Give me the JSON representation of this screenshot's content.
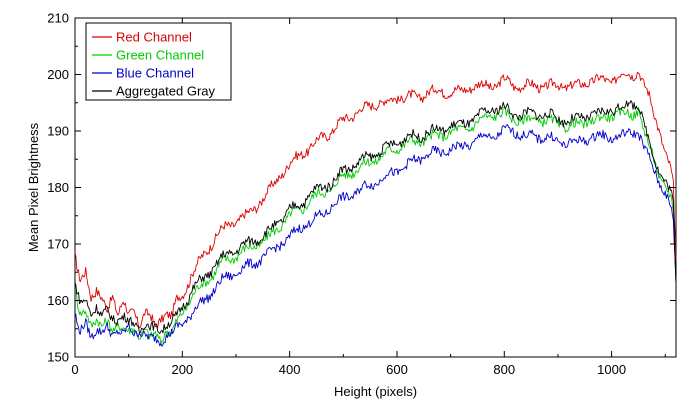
{
  "chart_data": {
    "type": "line",
    "title": "",
    "xlabel": "Height (pixels)",
    "ylabel": "Mean Pixel Brightness",
    "xlim": [
      0,
      1120
    ],
    "ylim": [
      150,
      210
    ],
    "xticks": [
      0,
      200,
      400,
      600,
      800,
      1000
    ],
    "yticks": [
      150,
      160,
      170,
      180,
      190,
      200,
      210
    ],
    "grid": false,
    "legend_position": "top-left",
    "series": [
      {
        "name": "Red Channel",
        "color": "#dd0000",
        "points": [
          [
            0,
            168
          ],
          [
            5,
            165
          ],
          [
            10,
            163
          ],
          [
            20,
            165
          ],
          [
            30,
            161
          ],
          [
            40,
            162
          ],
          [
            50,
            160
          ],
          [
            60,
            158
          ],
          [
            70,
            161
          ],
          [
            80,
            158
          ],
          [
            90,
            160
          ],
          [
            100,
            157
          ],
          [
            110,
            158
          ],
          [
            120,
            156
          ],
          [
            130,
            158
          ],
          [
            140,
            157
          ],
          [
            150,
            155
          ],
          [
            160,
            157
          ],
          [
            170,
            158
          ],
          [
            180,
            157
          ],
          [
            190,
            160
          ],
          [
            200,
            161
          ],
          [
            220,
            165
          ],
          [
            240,
            168
          ],
          [
            260,
            171
          ],
          [
            280,
            173
          ],
          [
            300,
            174
          ],
          [
            320,
            175
          ],
          [
            340,
            177
          ],
          [
            360,
            179
          ],
          [
            380,
            182
          ],
          [
            400,
            184
          ],
          [
            420,
            186
          ],
          [
            440,
            187
          ],
          [
            460,
            189
          ],
          [
            480,
            190
          ],
          [
            500,
            192
          ],
          [
            520,
            193
          ],
          [
            540,
            194
          ],
          [
            560,
            195
          ],
          [
            580,
            195
          ],
          [
            600,
            196
          ],
          [
            620,
            196
          ],
          [
            640,
            196
          ],
          [
            660,
            197
          ],
          [
            680,
            197
          ],
          [
            700,
            197
          ],
          [
            720,
            197
          ],
          [
            740,
            198
          ],
          [
            760,
            198
          ],
          [
            780,
            198
          ],
          [
            800,
            199
          ],
          [
            820,
            198
          ],
          [
            840,
            198
          ],
          [
            860,
            198
          ],
          [
            880,
            198
          ],
          [
            900,
            198
          ],
          [
            920,
            198
          ],
          [
            940,
            198
          ],
          [
            960,
            199
          ],
          [
            980,
            199
          ],
          [
            1000,
            199
          ],
          [
            1020,
            200
          ],
          [
            1040,
            200
          ],
          [
            1050,
            201
          ],
          [
            1060,
            198
          ],
          [
            1070,
            196
          ],
          [
            1080,
            193
          ],
          [
            1090,
            190
          ],
          [
            1100,
            186
          ],
          [
            1110,
            183
          ],
          [
            1115,
            180
          ],
          [
            1120,
            167
          ]
        ]
      },
      {
        "name": "Green Channel",
        "color": "#00cc00",
        "points": [
          [
            0,
            162
          ],
          [
            5,
            159
          ],
          [
            10,
            157
          ],
          [
            20,
            158
          ],
          [
            30,
            156
          ],
          [
            40,
            157
          ],
          [
            50,
            155
          ],
          [
            60,
            156
          ],
          [
            70,
            155
          ],
          [
            80,
            156
          ],
          [
            90,
            155
          ],
          [
            100,
            154
          ],
          [
            110,
            155
          ],
          [
            120,
            154
          ],
          [
            130,
            155
          ],
          [
            140,
            153
          ],
          [
            150,
            154
          ],
          [
            160,
            153
          ],
          [
            170,
            155
          ],
          [
            180,
            154
          ],
          [
            190,
            156
          ],
          [
            200,
            158
          ],
          [
            220,
            161
          ],
          [
            240,
            163
          ],
          [
            260,
            165
          ],
          [
            280,
            167
          ],
          [
            300,
            168
          ],
          [
            320,
            169
          ],
          [
            340,
            170
          ],
          [
            360,
            171
          ],
          [
            380,
            173
          ],
          [
            400,
            175
          ],
          [
            420,
            176
          ],
          [
            440,
            178
          ],
          [
            460,
            179
          ],
          [
            480,
            180
          ],
          [
            500,
            182
          ],
          [
            520,
            183
          ],
          [
            540,
            184
          ],
          [
            560,
            185
          ],
          [
            580,
            186
          ],
          [
            600,
            187
          ],
          [
            620,
            188
          ],
          [
            640,
            188
          ],
          [
            660,
            189
          ],
          [
            680,
            189
          ],
          [
            700,
            190
          ],
          [
            720,
            190
          ],
          [
            740,
            191
          ],
          [
            760,
            192
          ],
          [
            780,
            193
          ],
          [
            800,
            193
          ],
          [
            820,
            192
          ],
          [
            840,
            192
          ],
          [
            860,
            192
          ],
          [
            880,
            192
          ],
          [
            900,
            191
          ],
          [
            920,
            191
          ],
          [
            940,
            191
          ],
          [
            960,
            192
          ],
          [
            980,
            192
          ],
          [
            1000,
            193
          ],
          [
            1020,
            193
          ],
          [
            1040,
            193
          ],
          [
            1050,
            194
          ],
          [
            1060,
            190
          ],
          [
            1070,
            187
          ],
          [
            1080,
            185
          ],
          [
            1090,
            182
          ],
          [
            1100,
            180
          ],
          [
            1110,
            178
          ],
          [
            1115,
            176
          ],
          [
            1120,
            163
          ]
        ]
      },
      {
        "name": "Blue Channel",
        "color": "#0000cc",
        "points": [
          [
            0,
            158
          ],
          [
            5,
            155
          ],
          [
            10,
            154
          ],
          [
            20,
            156
          ],
          [
            30,
            154
          ],
          [
            40,
            155
          ],
          [
            50,
            154
          ],
          [
            60,
            155
          ],
          [
            70,
            154
          ],
          [
            80,
            155
          ],
          [
            90,
            154
          ],
          [
            100,
            155
          ],
          [
            110,
            154
          ],
          [
            120,
            155
          ],
          [
            130,
            154
          ],
          [
            140,
            153
          ],
          [
            150,
            153
          ],
          [
            160,
            153
          ],
          [
            170,
            154
          ],
          [
            180,
            154
          ],
          [
            190,
            155
          ],
          [
            200,
            156
          ],
          [
            220,
            158
          ],
          [
            240,
            160
          ],
          [
            260,
            162
          ],
          [
            280,
            164
          ],
          [
            300,
            165
          ],
          [
            320,
            166
          ],
          [
            340,
            167
          ],
          [
            360,
            168
          ],
          [
            380,
            170
          ],
          [
            400,
            171
          ],
          [
            420,
            173
          ],
          [
            440,
            174
          ],
          [
            460,
            175
          ],
          [
            480,
            177
          ],
          [
            500,
            178
          ],
          [
            520,
            179
          ],
          [
            540,
            180
          ],
          [
            560,
            181
          ],
          [
            580,
            182
          ],
          [
            600,
            183
          ],
          [
            620,
            184
          ],
          [
            640,
            185
          ],
          [
            660,
            186
          ],
          [
            680,
            186
          ],
          [
            700,
            187
          ],
          [
            720,
            187
          ],
          [
            740,
            188
          ],
          [
            760,
            189
          ],
          [
            780,
            189
          ],
          [
            800,
            190
          ],
          [
            820,
            190
          ],
          [
            840,
            189
          ],
          [
            860,
            189
          ],
          [
            880,
            189
          ],
          [
            900,
            188
          ],
          [
            920,
            188
          ],
          [
            940,
            188
          ],
          [
            960,
            189
          ],
          [
            980,
            189
          ],
          [
            1000,
            189
          ],
          [
            1020,
            189
          ],
          [
            1040,
            190
          ],
          [
            1050,
            190
          ],
          [
            1060,
            187
          ],
          [
            1070,
            185
          ],
          [
            1080,
            183
          ],
          [
            1090,
            181
          ],
          [
            1100,
            179
          ],
          [
            1110,
            176
          ],
          [
            1115,
            174
          ],
          [
            1120,
            163
          ]
        ]
      },
      {
        "name": "Aggregated Gray",
        "color": "#000000",
        "points": [
          [
            0,
            163
          ],
          [
            5,
            161
          ],
          [
            10,
            159
          ],
          [
            20,
            160
          ],
          [
            30,
            158
          ],
          [
            40,
            159
          ],
          [
            50,
            157
          ],
          [
            60,
            158
          ],
          [
            70,
            157
          ],
          [
            80,
            157
          ],
          [
            90,
            157
          ],
          [
            100,
            156
          ],
          [
            110,
            156
          ],
          [
            120,
            155
          ],
          [
            130,
            156
          ],
          [
            140,
            155
          ],
          [
            150,
            155
          ],
          [
            160,
            155
          ],
          [
            170,
            156
          ],
          [
            180,
            156
          ],
          [
            190,
            157
          ],
          [
            200,
            159
          ],
          [
            220,
            162
          ],
          [
            240,
            164
          ],
          [
            260,
            166
          ],
          [
            280,
            168
          ],
          [
            300,
            169
          ],
          [
            320,
            170
          ],
          [
            340,
            171
          ],
          [
            360,
            172
          ],
          [
            380,
            174
          ],
          [
            400,
            176
          ],
          [
            420,
            177
          ],
          [
            440,
            179
          ],
          [
            460,
            180
          ],
          [
            480,
            181
          ],
          [
            500,
            183
          ],
          [
            520,
            184
          ],
          [
            540,
            185
          ],
          [
            560,
            186
          ],
          [
            580,
            187
          ],
          [
            600,
            188
          ],
          [
            620,
            189
          ],
          [
            640,
            189
          ],
          [
            660,
            190
          ],
          [
            680,
            190
          ],
          [
            700,
            191
          ],
          [
            720,
            191
          ],
          [
            740,
            192
          ],
          [
            760,
            193
          ],
          [
            780,
            194
          ],
          [
            800,
            194
          ],
          [
            820,
            193
          ],
          [
            840,
            193
          ],
          [
            860,
            193
          ],
          [
            880,
            193
          ],
          [
            900,
            192
          ],
          [
            920,
            192
          ],
          [
            940,
            192
          ],
          [
            960,
            193
          ],
          [
            980,
            193
          ],
          [
            1000,
            194
          ],
          [
            1020,
            194
          ],
          [
            1040,
            195
          ],
          [
            1050,
            195
          ],
          [
            1060,
            191
          ],
          [
            1070,
            188
          ],
          [
            1080,
            185
          ],
          [
            1090,
            183
          ],
          [
            1100,
            181
          ],
          [
            1110,
            179
          ],
          [
            1115,
            177
          ],
          [
            1120,
            163
          ]
        ]
      }
    ]
  }
}
